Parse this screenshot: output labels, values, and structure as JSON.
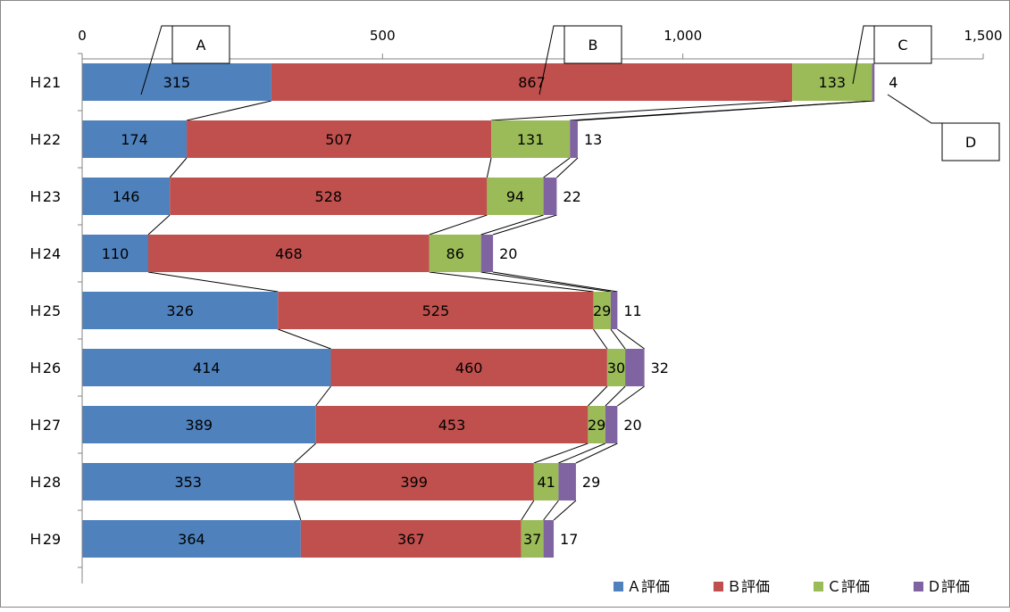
{
  "chart_data": {
    "type": "bar",
    "orientation": "horizontal",
    "stacked": true,
    "categories": [
      "H21",
      "H22",
      "H23",
      "H24",
      "H25",
      "H26",
      "H27",
      "H28",
      "H29"
    ],
    "category_labels": [
      "Ｈ21",
      "Ｈ22",
      "Ｈ23",
      "Ｈ24",
      "Ｈ25",
      "Ｈ26",
      "Ｈ27",
      "Ｈ28",
      "Ｈ29"
    ],
    "series": [
      {
        "name": "Ａ評価",
        "color": "#4F81BD",
        "values": [
          315,
          174,
          146,
          110,
          326,
          414,
          389,
          353,
          364
        ]
      },
      {
        "name": "Ｂ評価",
        "color": "#C0504D",
        "values": [
          867,
          507,
          528,
          468,
          525,
          460,
          453,
          399,
          367
        ]
      },
      {
        "name": "Ｃ評価",
        "color": "#9BBB59",
        "values": [
          133,
          131,
          94,
          86,
          29,
          30,
          29,
          41,
          37
        ]
      },
      {
        "name": "Ｄ評価",
        "color": "#8064A2",
        "values": [
          4,
          13,
          22,
          20,
          11,
          32,
          20,
          29,
          17
        ]
      }
    ],
    "xlim": [
      0,
      1500
    ],
    "x_ticks": [
      0,
      500,
      1000,
      1500
    ],
    "x_tick_labels": [
      "0",
      "500",
      "1,000",
      "1,500"
    ],
    "x_axis_position": "top",
    "grid": false,
    "series_lines": true,
    "legend": {
      "position": "bottom-right",
      "entries": [
        "Ａ評価",
        "Ｂ評価",
        "Ｃ評価",
        "Ｄ評価"
      ]
    },
    "callouts": [
      "A",
      "B",
      "C",
      "D"
    ]
  }
}
